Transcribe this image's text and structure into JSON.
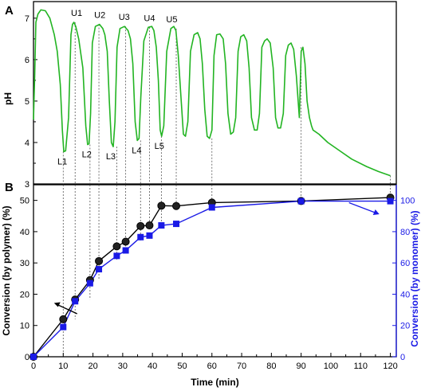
{
  "chart_data": [
    {
      "panel": "A",
      "type": "line",
      "ylabel": "pH",
      "ylim": [
        3,
        7.4
      ],
      "yticks": [
        3,
        4,
        5,
        6,
        7
      ],
      "xlim": [
        0,
        122
      ],
      "color": "#22b422",
      "series": [
        {
          "x": [
            0,
            0.4,
            0.8,
            1.5,
            2.5,
            4,
            5.5,
            7,
            8,
            9,
            9.7,
            10.2,
            10.8,
            11.8,
            12.6,
            13.1,
            13.6,
            14.2,
            15.2,
            16.6,
            17.6,
            18.2,
            18.7,
            19.2,
            19.8,
            20.8,
            22.2,
            23.3,
            24.0,
            24.8,
            25.5,
            26.2,
            26.8,
            27.4,
            28.1,
            29.1,
            30.6,
            31.8,
            32.6,
            33.4,
            34.2,
            34.9,
            35.5,
            36.1,
            37.1,
            38.6,
            39.8,
            40.5,
            41.3,
            42.0,
            42.6,
            43.1,
            43.8,
            44.8,
            46.2,
            47.2,
            47.9,
            48.7,
            49.5,
            50.4,
            51.1,
            51.9,
            52.8,
            54.0,
            55.2,
            56.0,
            56.8,
            57.6,
            58.4,
            59.2,
            60.0,
            60.7,
            61.6,
            62.7,
            63.8,
            64.6,
            65.4,
            66.3,
            67.2,
            68.0,
            68.8,
            69.7,
            70.7,
            71.7,
            72.5,
            73.3,
            74.3,
            75.2,
            76.0,
            76.8,
            77.7,
            78.6,
            79.6,
            80.6,
            81.4,
            82.2,
            83.1,
            84.0,
            84.8,
            85.7,
            86.6,
            87.5,
            88.4,
            89.4,
            90.0,
            90.6,
            91.3,
            92.0,
            92.8,
            93.5,
            94,
            96,
            99,
            103,
            107,
            112,
            116,
            120
          ],
          "y": [
            4.55,
            5.6,
            6.9,
            7.1,
            7.2,
            7.18,
            7.0,
            6.6,
            6.2,
            5.4,
            4.3,
            3.78,
            3.8,
            4.6,
            6.6,
            6.85,
            6.9,
            6.8,
            6.5,
            5.8,
            4.4,
            3.95,
            3.97,
            4.7,
            6.4,
            6.8,
            6.85,
            6.75,
            6.6,
            6.2,
            5.0,
            4.0,
            3.9,
            4.5,
            6.3,
            6.75,
            6.8,
            6.7,
            6.5,
            5.9,
            4.5,
            4.05,
            4.1,
            5.1,
            6.45,
            6.78,
            6.8,
            6.7,
            6.3,
            5.5,
            4.3,
            4.15,
            4.4,
            6.2,
            6.75,
            6.8,
            6.7,
            6.1,
            5.2,
            4.2,
            4.15,
            4.5,
            6.2,
            6.6,
            6.65,
            6.5,
            5.9,
            4.8,
            4.15,
            4.1,
            4.3,
            6.1,
            6.6,
            6.62,
            6.5,
            5.9,
            4.7,
            4.2,
            4.25,
            4.6,
            6.2,
            6.55,
            6.6,
            6.45,
            5.8,
            4.6,
            4.3,
            4.3,
            4.7,
            6.3,
            6.45,
            6.5,
            6.4,
            5.8,
            4.6,
            4.35,
            4.35,
            4.7,
            6.1,
            6.35,
            6.4,
            6.25,
            5.6,
            4.6,
            6.2,
            6.3,
            5.9,
            5.0,
            4.6,
            4.4,
            4.3,
            4.2,
            4.0,
            3.8,
            3.6,
            3.42,
            3.3,
            3.2
          ]
        }
      ],
      "annotations": [
        {
          "text": "U1",
          "x": 14.5,
          "y": 6.9
        },
        {
          "text": "U2",
          "x": 22.3,
          "y": 6.85
        },
        {
          "text": "U3",
          "x": 30.5,
          "y": 6.8
        },
        {
          "text": "U4",
          "x": 39.0,
          "y": 6.78
        },
        {
          "text": "U5",
          "x": 46.5,
          "y": 6.75
        },
        {
          "text": "L1",
          "x": 10.5,
          "y": 3.78
        },
        {
          "text": "L2",
          "x": 18.7,
          "y": 3.95
        },
        {
          "text": "L3",
          "x": 26.8,
          "y": 3.9
        },
        {
          "text": "L4",
          "x": 35.5,
          "y": 4.05
        },
        {
          "text": "L5",
          "x": 43.1,
          "y": 4.15
        }
      ]
    },
    {
      "panel": "B",
      "type": "line",
      "xlabel": "Time (min)",
      "ylabel": "Conversion (by polymer) (%)",
      "ylabel_right": "Conversion (by monomer) (%)",
      "xlim": [
        0,
        122
      ],
      "ylim": [
        0,
        55
      ],
      "ylim_right": [
        0,
        110
      ],
      "xticks": [
        0,
        10,
        20,
        30,
        40,
        50,
        60,
        70,
        80,
        90,
        100,
        110,
        120
      ],
      "yticks": [
        0,
        10,
        20,
        30,
        40,
        50
      ],
      "yticks_right": [
        0,
        20,
        40,
        60,
        80,
        100
      ],
      "x": [
        0,
        10,
        14,
        19,
        22,
        28,
        31,
        36,
        39,
        43,
        48,
        60,
        90,
        120
      ],
      "series": [
        {
          "axis": "left",
          "color": "#000000",
          "values": [
            0,
            12,
            18.3,
            24.5,
            30.6,
            35.3,
            36.8,
            41.8,
            42.0,
            48.3,
            48.2,
            49.3,
            49.8,
            50.9
          ]
        },
        {
          "axis": "right",
          "color": "#1a1ae6",
          "values": [
            0,
            19,
            35.5,
            47,
            56,
            64.5,
            68,
            76.5,
            77.5,
            84,
            85,
            95.5,
            99.5,
            99.5
          ]
        }
      ],
      "vlines_x": [
        10,
        14,
        19,
        22,
        28,
        31,
        36,
        39,
        43,
        48,
        60,
        90,
        120
      ]
    }
  ],
  "panel_a_letter": "A",
  "panel_b_letter": "B",
  "labels": {
    "ph": "pH",
    "time": "Time (min)",
    "conv_polymer": "Conversion (by polymer) (%)",
    "conv_monomer": "Conversion (by monomer) (%)"
  },
  "colors": {
    "ph_line": "#22b422",
    "polymer": "#000000",
    "monomer": "#1a1ae6",
    "guide": "#555555"
  }
}
